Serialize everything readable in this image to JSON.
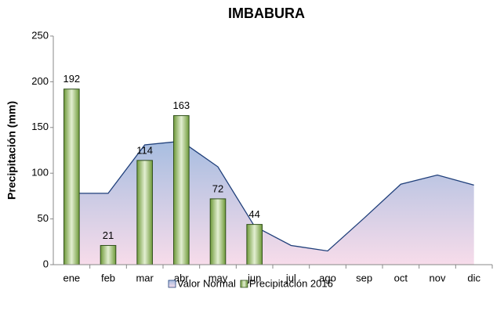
{
  "chart_data": {
    "type": "combo",
    "title": "IMBABURA",
    "y_label": "Precipitación (mm)",
    "categories": [
      "ene",
      "feb",
      "mar",
      "abr",
      "may",
      "jun",
      "jul",
      "ago",
      "sep",
      "oct",
      "nov",
      "dic"
    ],
    "series": [
      {
        "name": "Valor Normal",
        "type": "area",
        "color": "#1f3f7a",
        "values": [
          78,
          78,
          131,
          135,
          107,
          42,
          21,
          15,
          51,
          88,
          98,
          87
        ]
      },
      {
        "name": "Precipitación 2016",
        "type": "bar",
        "color": "#9bbb59",
        "values": [
          192,
          21,
          114,
          163,
          72,
          44,
          null,
          null,
          null,
          null,
          null,
          null
        ]
      }
    ],
    "ylim": [
      0,
      250
    ],
    "yticks": [
      0,
      50,
      100,
      150,
      200,
      250
    ],
    "data_labels": true
  }
}
